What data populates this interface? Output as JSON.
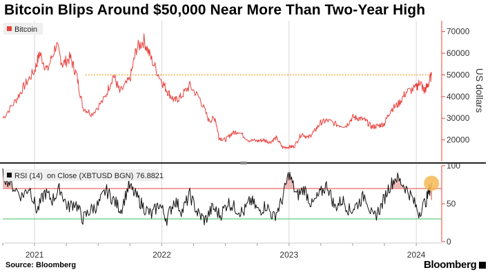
{
  "title": "Bitcoin Blips Around $50,000 Near More Than Two-Year High",
  "footer": {
    "source": "Source: Bloomberg",
    "brand": "Bloomberg"
  },
  "colors": {
    "price_line": "#e8413c",
    "threshold": "#f2a33a",
    "rsi_line": "#111111",
    "rsi_upper": "#e8a09c",
    "rsi_lower": "#7fd18a",
    "highlight": "#f7b955",
    "legend_bg": "#efefef"
  },
  "chart_data": [
    {
      "type": "line",
      "name": "price-panel",
      "legend": "Bitcoin",
      "ylabel": "US dollars",
      "ylim": [
        10000,
        75000
      ],
      "yticks": [
        20000,
        30000,
        40000,
        50000,
        60000,
        70000
      ],
      "ytick_labels": [
        "20000",
        "30000",
        "40000",
        "50000",
        "60000",
        "70000"
      ],
      "threshold": 50000,
      "series": [
        {
          "name": "Bitcoin",
          "x": [
            2020.75,
            2020.85,
            2020.92,
            2021.0,
            2021.04,
            2021.1,
            2021.17,
            2021.22,
            2021.28,
            2021.33,
            2021.38,
            2021.45,
            2021.55,
            2021.62,
            2021.67,
            2021.75,
            2021.8,
            2021.86,
            2021.92,
            2022.0,
            2022.05,
            2022.1,
            2022.15,
            2022.22,
            2022.3,
            2022.37,
            2022.42,
            2022.45,
            2022.5,
            2022.55,
            2022.6,
            2022.68,
            2022.75,
            2022.8,
            2022.85,
            2022.9,
            2022.95,
            2023.0,
            2023.04,
            2023.1,
            2023.15,
            2023.2,
            2023.25,
            2023.3,
            2023.38,
            2023.45,
            2023.5,
            2023.55,
            2023.6,
            2023.65,
            2023.7,
            2023.75,
            2023.8,
            2023.86,
            2023.92,
            2024.0,
            2024.03,
            2024.06,
            2024.09,
            2024.12
          ],
          "values": [
            30000,
            38000,
            45000,
            52000,
            60000,
            52000,
            64000,
            55000,
            58000,
            50000,
            35000,
            32000,
            39000,
            50000,
            42000,
            48000,
            62000,
            66000,
            57000,
            47000,
            42000,
            38000,
            40000,
            45000,
            39000,
            29000,
            30000,
            21000,
            20000,
            23000,
            24000,
            20000,
            19500,
            20000,
            19000,
            21000,
            16500,
            16800,
            17000,
            23000,
            21000,
            24000,
            28000,
            29000,
            27000,
            26500,
            30500,
            30000,
            29000,
            26000,
            26500,
            27500,
            34000,
            36500,
            42000,
            44000,
            47000,
            42500,
            45000,
            50000
          ]
        }
      ]
    },
    {
      "type": "line",
      "name": "rsi-panel",
      "legend": "RSI (14)",
      "legend_detail": "on Close (XBTUSD BGN)",
      "legend_value": "76.8821",
      "ylim": [
        0,
        100
      ],
      "yticks": [
        0,
        50,
        100
      ],
      "ytick_labels": [
        "0",
        "50",
        "100"
      ],
      "upper_band": 70,
      "lower_band": 30,
      "highlight_value": 76.8821,
      "series": [
        {
          "name": "RSI (14)",
          "x": [
            2020.75,
            2020.82,
            2020.9,
            2020.96,
            2021.02,
            2021.08,
            2021.14,
            2021.2,
            2021.26,
            2021.32,
            2021.38,
            2021.44,
            2021.5,
            2021.56,
            2021.62,
            2021.68,
            2021.74,
            2021.8,
            2021.86,
            2021.92,
            2021.98,
            2022.04,
            2022.1,
            2022.16,
            2022.22,
            2022.28,
            2022.34,
            2022.4,
            2022.46,
            2022.52,
            2022.58,
            2022.64,
            2022.7,
            2022.76,
            2022.82,
            2022.88,
            2022.94,
            2023.0,
            2023.06,
            2023.12,
            2023.18,
            2023.24,
            2023.3,
            2023.36,
            2023.42,
            2023.48,
            2023.54,
            2023.6,
            2023.66,
            2023.72,
            2023.78,
            2023.84,
            2023.9,
            2023.96,
            2024.02,
            2024.08,
            2024.12
          ],
          "values": [
            88,
            75,
            60,
            72,
            40,
            65,
            55,
            70,
            45,
            52,
            30,
            42,
            48,
            68,
            55,
            42,
            74,
            60,
            45,
            35,
            50,
            30,
            55,
            40,
            62,
            38,
            28,
            45,
            35,
            52,
            44,
            38,
            55,
            40,
            48,
            32,
            52,
            90,
            60,
            70,
            48,
            62,
            75,
            45,
            55,
            40,
            50,
            62,
            30,
            45,
            70,
            85,
            75,
            60,
            38,
            55,
            77
          ]
        }
      ]
    }
  ],
  "x_axis": {
    "range": [
      2020.75,
      2024.2
    ],
    "ticks": [
      2021.0,
      2022.0,
      2023.0,
      2024.0
    ],
    "tick_labels": [
      "2021",
      "2022",
      "2023",
      "2024"
    ]
  }
}
